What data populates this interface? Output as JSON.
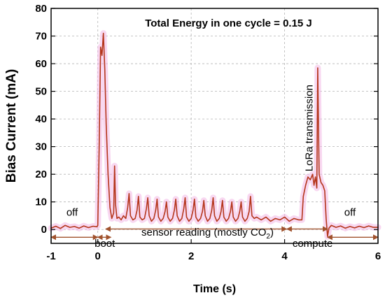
{
  "chart_data": {
    "type": "line",
    "title": "Total Energy in one cycle = 0.15 J",
    "xlabel": "Time (s)",
    "ylabel": "Bias Current (mA)",
    "xlim": [
      -1,
      6
    ],
    "ylim": [
      -5,
      80
    ],
    "x_ticks": [
      -1,
      0,
      2,
      4,
      6
    ],
    "y_ticks": [
      0,
      10,
      20,
      30,
      40,
      50,
      60,
      70,
      80
    ],
    "grid": true,
    "colors": {
      "line": "#b5361c",
      "glow": "#f3b8e6",
      "arrow": "#a0522d",
      "grid": "#b4b4b4"
    },
    "series": [
      {
        "x": [
          -1.0,
          -0.9,
          -0.8,
          -0.7,
          -0.6,
          -0.5,
          -0.4,
          -0.3,
          -0.2,
          -0.1,
          -0.02,
          0.0,
          0.03,
          0.06,
          0.09,
          0.12,
          0.15,
          0.18,
          0.22,
          0.26,
          0.3,
          0.34,
          0.36,
          0.38,
          0.41,
          0.45,
          0.5,
          0.55,
          0.6,
          0.64,
          0.67,
          0.7,
          0.75,
          0.8,
          0.84,
          0.87,
          0.9,
          0.95,
          1.0,
          1.04,
          1.07,
          1.1,
          1.15,
          1.2,
          1.24,
          1.27,
          1.3,
          1.35,
          1.4,
          1.44,
          1.47,
          1.5,
          1.55,
          1.6,
          1.64,
          1.67,
          1.7,
          1.75,
          1.8,
          1.84,
          1.87,
          1.9,
          1.95,
          2.0,
          2.04,
          2.07,
          2.1,
          2.15,
          2.2,
          2.24,
          2.27,
          2.3,
          2.35,
          2.4,
          2.44,
          2.47,
          2.5,
          2.55,
          2.6,
          2.64,
          2.67,
          2.7,
          2.75,
          2.8,
          2.84,
          2.87,
          2.9,
          2.95,
          3.0,
          3.04,
          3.07,
          3.1,
          3.15,
          3.2,
          3.24,
          3.27,
          3.3,
          3.35,
          3.4,
          3.5,
          3.6,
          3.7,
          3.8,
          3.9,
          4.0,
          4.1,
          4.2,
          4.3,
          4.37,
          4.4,
          4.45,
          4.5,
          4.55,
          4.6,
          4.63,
          4.66,
          4.69,
          4.71,
          4.74,
          4.78,
          4.82,
          4.86,
          4.89,
          4.92,
          4.95,
          5.0,
          5.1,
          5.2,
          5.3,
          5.4,
          5.5,
          5.6,
          5.7,
          5.8,
          5.9,
          6.0
        ],
        "y": [
          0.5,
          1.2,
          0.4,
          1.5,
          0.8,
          1.1,
          0.5,
          1.3,
          0.7,
          1.2,
          1.0,
          1.5,
          30.0,
          66.0,
          63.0,
          71.0,
          58.0,
          38.0,
          20.0,
          8.0,
          4.0,
          6.0,
          23.0,
          9.0,
          4.0,
          4.5,
          3.5,
          5.0,
          4.0,
          8.0,
          13.0,
          5.0,
          3.5,
          4.0,
          7.0,
          12.0,
          4.5,
          3.5,
          4.0,
          7.5,
          11.5,
          5.0,
          3.0,
          4.0,
          7.0,
          11.0,
          4.5,
          3.0,
          4.0,
          6.5,
          10.0,
          4.5,
          3.0,
          4.0,
          7.0,
          11.0,
          5.0,
          3.0,
          4.0,
          7.5,
          11.5,
          4.5,
          3.0,
          4.0,
          7.0,
          11.0,
          4.5,
          3.0,
          4.0,
          6.5,
          10.5,
          5.0,
          3.0,
          4.0,
          7.0,
          11.5,
          5.0,
          3.0,
          4.0,
          6.5,
          10.5,
          4.5,
          3.0,
          4.0,
          6.5,
          10.0,
          4.5,
          3.0,
          4.0,
          6.5,
          10.0,
          4.5,
          3.0,
          4.0,
          6.5,
          12.0,
          5.0,
          4.0,
          4.5,
          3.5,
          4.5,
          3.0,
          4.0,
          3.5,
          4.5,
          3.0,
          4.0,
          3.5,
          3.5,
          12.0,
          16.0,
          19.0,
          18.0,
          20.0,
          16.0,
          19.0,
          15.0,
          58.5,
          20.0,
          17.0,
          16.0,
          14.0,
          4.0,
          -2.5,
          0.5,
          1.5,
          0.8,
          1.3,
          0.5,
          1.1,
          0.6,
          1.2,
          0.7,
          1.3,
          0.8,
          0.8
        ]
      }
    ],
    "annotations": [
      {
        "text": "off",
        "x": -0.55,
        "y": 5.0
      },
      {
        "text": "off",
        "x": 5.4,
        "y": 5.0
      },
      {
        "text": "LoRa transmission",
        "x": 4.6,
        "y": 21.0,
        "rotate": -90
      },
      {
        "text_main": "sensor reading (mostly CO",
        "text_sub": "2",
        "text_end": ")",
        "x": 2.35,
        "y": -2.2
      },
      {
        "text": "boot",
        "x": 0.15,
        "y": -6.3
      },
      {
        "text": "compute",
        "x": 4.6,
        "y": -6.3
      }
    ],
    "spans": [
      {
        "x0": -1.0,
        "x1": 0.0,
        "y": -2.8
      },
      {
        "x0": 0.0,
        "x1": 0.28,
        "y": -2.8
      },
      {
        "x0": 0.17,
        "x1": 4.04,
        "y": 0.2
      },
      {
        "x0": 4.05,
        "x1": 4.92,
        "y": 0.2
      },
      {
        "x0": 4.92,
        "x1": 6.0,
        "y": -2.8
      }
    ]
  }
}
